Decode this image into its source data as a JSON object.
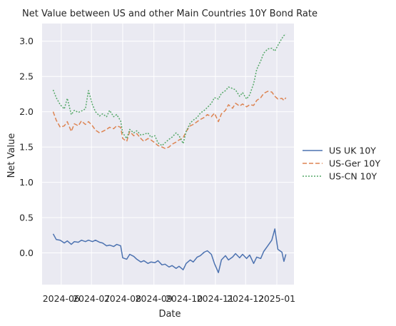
{
  "chart_data": {
    "type": "line",
    "title": "Net Value between US and other Main Countries 10Y Bond Rate",
    "xlabel": "Date",
    "ylabel": "Net Value",
    "xlim": [
      "2024-05-13",
      "2025-01-18"
    ],
    "ylim": [
      -0.45,
      3.25
    ],
    "x_ticks": [
      "2024-06",
      "2024-07",
      "2024-08",
      "2024-09",
      "2024-10",
      "2024-11",
      "2024-12",
      "2025-01"
    ],
    "y_ticks": [
      0.0,
      0.5,
      1.0,
      1.5,
      2.0,
      2.5,
      3.0
    ],
    "y_tick_labels": [
      "0.0",
      "0.5",
      "1.0",
      "1.5",
      "2.0",
      "2.5",
      "3.0"
    ],
    "grid": true,
    "legend_position": "right",
    "background": "#eaeaf2",
    "series": [
      {
        "name": "US UK 10Y",
        "color": "#4c72b0",
        "dash": "solid",
        "points": [
          [
            "2024-05-24",
            0.27
          ],
          [
            "2024-05-27",
            0.19
          ],
          [
            "2024-05-31",
            0.18
          ],
          [
            "2024-06-04",
            0.14
          ],
          [
            "2024-06-07",
            0.17
          ],
          [
            "2024-06-11",
            0.12
          ],
          [
            "2024-06-14",
            0.16
          ],
          [
            "2024-06-18",
            0.15
          ],
          [
            "2024-06-21",
            0.18
          ],
          [
            "2024-06-25",
            0.16
          ],
          [
            "2024-06-28",
            0.18
          ],
          [
            "2024-07-02",
            0.16
          ],
          [
            "2024-07-05",
            0.18
          ],
          [
            "2024-07-09",
            0.15
          ],
          [
            "2024-07-12",
            0.14
          ],
          [
            "2024-07-16",
            0.1
          ],
          [
            "2024-07-19",
            0.11
          ],
          [
            "2024-07-23",
            0.09
          ],
          [
            "2024-07-26",
            0.12
          ],
          [
            "2024-07-30",
            0.1
          ],
          [
            "2024-08-01",
            -0.07
          ],
          [
            "2024-08-05",
            -0.09
          ],
          [
            "2024-08-08",
            -0.02
          ],
          [
            "2024-08-12",
            -0.05
          ],
          [
            "2024-08-15",
            -0.09
          ],
          [
            "2024-08-19",
            -0.13
          ],
          [
            "2024-08-22",
            -0.11
          ],
          [
            "2024-08-26",
            -0.15
          ],
          [
            "2024-08-29",
            -0.13
          ],
          [
            "2024-09-02",
            -0.14
          ],
          [
            "2024-09-05",
            -0.11
          ],
          [
            "2024-09-09",
            -0.17
          ],
          [
            "2024-09-12",
            -0.16
          ],
          [
            "2024-09-16",
            -0.2
          ],
          [
            "2024-09-19",
            -0.18
          ],
          [
            "2024-09-23",
            -0.22
          ],
          [
            "2024-09-26",
            -0.19
          ],
          [
            "2024-09-30",
            -0.24
          ],
          [
            "2024-10-03",
            -0.15
          ],
          [
            "2024-10-07",
            -0.1
          ],
          [
            "2024-10-10",
            -0.13
          ],
          [
            "2024-10-14",
            -0.06
          ],
          [
            "2024-10-17",
            -0.04
          ],
          [
            "2024-10-21",
            0.01
          ],
          [
            "2024-10-24",
            0.03
          ],
          [
            "2024-10-28",
            -0.02
          ],
          [
            "2024-10-31",
            -0.15
          ],
          [
            "2024-11-04",
            -0.28
          ],
          [
            "2024-11-07",
            -0.1
          ],
          [
            "2024-11-11",
            -0.04
          ],
          [
            "2024-11-14",
            -0.1
          ],
          [
            "2024-11-18",
            -0.06
          ],
          [
            "2024-11-21",
            -0.01
          ],
          [
            "2024-11-25",
            -0.07
          ],
          [
            "2024-11-28",
            -0.02
          ],
          [
            "2024-12-02",
            -0.08
          ],
          [
            "2024-12-05",
            -0.03
          ],
          [
            "2024-12-09",
            -0.15
          ],
          [
            "2024-12-12",
            -0.06
          ],
          [
            "2024-12-16",
            -0.08
          ],
          [
            "2024-12-19",
            0.02
          ],
          [
            "2024-12-23",
            0.1
          ],
          [
            "2024-12-27",
            0.18
          ],
          [
            "2024-12-30",
            0.34
          ],
          [
            "2025-01-02",
            0.05
          ],
          [
            "2025-01-06",
            0.01
          ],
          [
            "2025-01-08",
            -0.12
          ],
          [
            "2025-01-10",
            -0.02
          ]
        ]
      },
      {
        "name": "US-Ger 10Y",
        "color": "#dd8452",
        "dash": "6,3",
        "points": [
          [
            "2024-05-24",
            2.0
          ],
          [
            "2024-05-27",
            1.88
          ],
          [
            "2024-05-31",
            1.78
          ],
          [
            "2024-06-04",
            1.8
          ],
          [
            "2024-06-07",
            1.86
          ],
          [
            "2024-06-11",
            1.72
          ],
          [
            "2024-06-14",
            1.83
          ],
          [
            "2024-06-18",
            1.8
          ],
          [
            "2024-06-21",
            1.87
          ],
          [
            "2024-06-25",
            1.82
          ],
          [
            "2024-06-28",
            1.86
          ],
          [
            "2024-07-02",
            1.8
          ],
          [
            "2024-07-05",
            1.74
          ],
          [
            "2024-07-09",
            1.7
          ],
          [
            "2024-07-12",
            1.72
          ],
          [
            "2024-07-16",
            1.75
          ],
          [
            "2024-07-19",
            1.78
          ],
          [
            "2024-07-23",
            1.76
          ],
          [
            "2024-07-26",
            1.8
          ],
          [
            "2024-07-30",
            1.78
          ],
          [
            "2024-08-01",
            1.62
          ],
          [
            "2024-08-05",
            1.58
          ],
          [
            "2024-08-08",
            1.72
          ],
          [
            "2024-08-12",
            1.66
          ],
          [
            "2024-08-15",
            1.69
          ],
          [
            "2024-08-19",
            1.62
          ],
          [
            "2024-08-22",
            1.58
          ],
          [
            "2024-08-26",
            1.62
          ],
          [
            "2024-08-29",
            1.6
          ],
          [
            "2024-09-02",
            1.56
          ],
          [
            "2024-09-05",
            1.52
          ],
          [
            "2024-09-09",
            1.5
          ],
          [
            "2024-09-12",
            1.48
          ],
          [
            "2024-09-16",
            1.5
          ],
          [
            "2024-09-19",
            1.54
          ],
          [
            "2024-09-23",
            1.57
          ],
          [
            "2024-09-26",
            1.6
          ],
          [
            "2024-09-30",
            1.63
          ],
          [
            "2024-10-03",
            1.72
          ],
          [
            "2024-10-07",
            1.8
          ],
          [
            "2024-10-10",
            1.82
          ],
          [
            "2024-10-14",
            1.86
          ],
          [
            "2024-10-17",
            1.89
          ],
          [
            "2024-10-21",
            1.92
          ],
          [
            "2024-10-24",
            1.96
          ],
          [
            "2024-10-28",
            1.93
          ],
          [
            "2024-10-31",
            1.98
          ],
          [
            "2024-11-04",
            1.86
          ],
          [
            "2024-11-07",
            1.97
          ],
          [
            "2024-11-11",
            2.02
          ],
          [
            "2024-11-14",
            2.1
          ],
          [
            "2024-11-18",
            2.05
          ],
          [
            "2024-11-21",
            2.12
          ],
          [
            "2024-11-25",
            2.08
          ],
          [
            "2024-11-28",
            2.11
          ],
          [
            "2024-12-02",
            2.07
          ],
          [
            "2024-12-05",
            2.1
          ],
          [
            "2024-12-09",
            2.09
          ],
          [
            "2024-12-12",
            2.16
          ],
          [
            "2024-12-16",
            2.2
          ],
          [
            "2024-12-19",
            2.26
          ],
          [
            "2024-12-23",
            2.29
          ],
          [
            "2024-12-27",
            2.28
          ],
          [
            "2024-12-30",
            2.22
          ],
          [
            "2025-01-02",
            2.18
          ],
          [
            "2025-01-06",
            2.19
          ],
          [
            "2025-01-08",
            2.16
          ],
          [
            "2025-01-10",
            2.2
          ]
        ]
      },
      {
        "name": "US-CN 10Y",
        "color": "#55a868",
        "dash": "2,2",
        "points": [
          [
            "2024-05-24",
            2.31
          ],
          [
            "2024-05-27",
            2.2
          ],
          [
            "2024-05-31",
            2.1
          ],
          [
            "2024-06-04",
            2.04
          ],
          [
            "2024-06-07",
            2.19
          ],
          [
            "2024-06-11",
            1.96
          ],
          [
            "2024-06-14",
            2.02
          ],
          [
            "2024-06-18",
            1.99
          ],
          [
            "2024-06-21",
            2.01
          ],
          [
            "2024-06-25",
            2.04
          ],
          [
            "2024-06-28",
            2.3
          ],
          [
            "2024-07-02",
            2.1
          ],
          [
            "2024-07-05",
            2.0
          ],
          [
            "2024-07-09",
            1.94
          ],
          [
            "2024-07-12",
            1.97
          ],
          [
            "2024-07-16",
            1.93
          ],
          [
            "2024-07-19",
            2.02
          ],
          [
            "2024-07-23",
            1.93
          ],
          [
            "2024-07-26",
            1.96
          ],
          [
            "2024-07-30",
            1.87
          ],
          [
            "2024-08-01",
            1.7
          ],
          [
            "2024-08-05",
            1.62
          ],
          [
            "2024-08-08",
            1.75
          ],
          [
            "2024-08-12",
            1.7
          ],
          [
            "2024-08-15",
            1.73
          ],
          [
            "2024-08-19",
            1.67
          ],
          [
            "2024-08-22",
            1.68
          ],
          [
            "2024-08-26",
            1.7
          ],
          [
            "2024-08-29",
            1.64
          ],
          [
            "2024-09-02",
            1.66
          ],
          [
            "2024-09-05",
            1.56
          ],
          [
            "2024-09-09",
            1.52
          ],
          [
            "2024-09-12",
            1.56
          ],
          [
            "2024-09-16",
            1.61
          ],
          [
            "2024-09-19",
            1.64
          ],
          [
            "2024-09-23",
            1.7
          ],
          [
            "2024-09-26",
            1.66
          ],
          [
            "2024-09-30",
            1.55
          ],
          [
            "2024-10-03",
            1.72
          ],
          [
            "2024-10-07",
            1.84
          ],
          [
            "2024-10-10",
            1.88
          ],
          [
            "2024-10-14",
            1.92
          ],
          [
            "2024-10-17",
            1.98
          ],
          [
            "2024-10-21",
            2.02
          ],
          [
            "2024-10-24",
            2.06
          ],
          [
            "2024-10-28",
            2.12
          ],
          [
            "2024-10-31",
            2.2
          ],
          [
            "2024-11-04",
            2.18
          ],
          [
            "2024-11-07",
            2.26
          ],
          [
            "2024-11-11",
            2.3
          ],
          [
            "2024-11-14",
            2.35
          ],
          [
            "2024-11-18",
            2.33
          ],
          [
            "2024-11-21",
            2.31
          ],
          [
            "2024-11-25",
            2.22
          ],
          [
            "2024-11-28",
            2.27
          ],
          [
            "2024-12-02",
            2.18
          ],
          [
            "2024-12-05",
            2.24
          ],
          [
            "2024-12-09",
            2.4
          ],
          [
            "2024-12-12",
            2.6
          ],
          [
            "2024-12-16",
            2.72
          ],
          [
            "2024-12-19",
            2.83
          ],
          [
            "2024-12-23",
            2.89
          ],
          [
            "2024-12-27",
            2.9
          ],
          [
            "2024-12-30",
            2.86
          ],
          [
            "2025-01-02",
            2.94
          ],
          [
            "2025-01-06",
            3.04
          ],
          [
            "2025-01-08",
            3.08
          ],
          [
            "2025-01-10",
            3.1
          ]
        ]
      }
    ]
  }
}
